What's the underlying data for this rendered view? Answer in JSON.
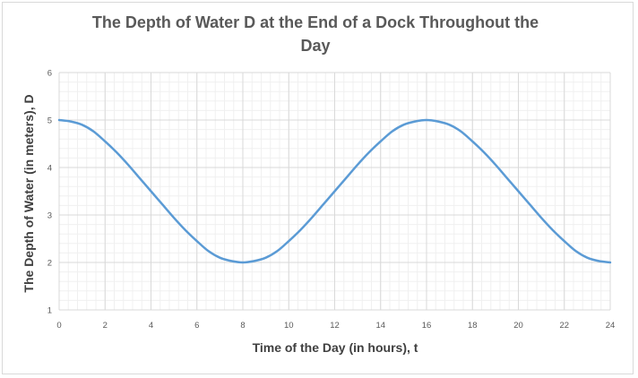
{
  "chart_data": {
    "type": "line",
    "title_line1": "The Depth of Water D at the End of a Dock Throughout the",
    "title_line2": "Day",
    "xlabel": "Time of the Day (in hours), t",
    "ylabel": "The Depth of Water (in meters), D",
    "xlim": [
      0,
      24
    ],
    "ylim": [
      1,
      6
    ],
    "x_ticks": [
      "0",
      "2",
      "4",
      "6",
      "8",
      "10",
      "12",
      "14",
      "16",
      "18",
      "20",
      "22",
      "24"
    ],
    "y_ticks": [
      "1",
      "2",
      "3",
      "4",
      "5",
      "6"
    ],
    "grid": true,
    "minor_grid": true,
    "legend": "none",
    "series_color": "#5b9bd5",
    "series": [
      {
        "x": [
          0,
          0.5,
          1,
          1.5,
          2,
          2.5,
          3,
          3.5,
          4,
          4.5,
          5,
          5.5,
          6,
          6.5,
          7,
          7.5,
          8,
          8.5,
          9,
          9.5,
          10,
          10.5,
          11,
          11.5,
          12,
          12.5,
          13,
          13.5,
          14,
          14.5,
          15,
          15.5,
          16,
          16.5,
          17,
          17.5,
          18,
          18.5,
          19,
          19.5,
          20,
          20.5,
          21,
          21.5,
          22,
          22.5,
          23,
          23.5,
          24
        ],
        "values": [
          5,
          4.97,
          4.9,
          4.76,
          4.55,
          4.32,
          4.06,
          3.78,
          3.5,
          3.22,
          2.94,
          2.68,
          2.45,
          2.24,
          2.1,
          2.03,
          2,
          2.03,
          2.1,
          2.24,
          2.45,
          2.68,
          2.94,
          3.22,
          3.5,
          3.78,
          4.06,
          4.32,
          4.55,
          4.76,
          4.9,
          4.97,
          5,
          4.97,
          4.9,
          4.76,
          4.55,
          4.32,
          4.06,
          3.78,
          3.5,
          3.22,
          2.94,
          2.68,
          2.45,
          2.24,
          2.1,
          2.03,
          2
        ]
      }
    ]
  }
}
